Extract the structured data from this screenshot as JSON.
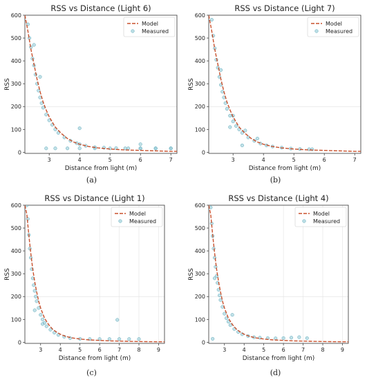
{
  "chart_data": [
    {
      "type": "scatter",
      "caption": "(a)",
      "title": "RSS vs Distance (Light 6)",
      "xlabel": "Distance from light (m)",
      "ylabel": "RSS",
      "xlim": [
        2.2,
        7.2
      ],
      "ylim": [
        -5,
        600
      ],
      "xticks": [
        3,
        4,
        5,
        6,
        7
      ],
      "yticks": [
        0,
        100,
        200,
        300,
        400,
        500,
        600
      ],
      "grid": true,
      "legend_position": "top-right",
      "series": [
        {
          "name": "Model",
          "kind": "line",
          "color": "#c8502c",
          "x": [
            2.2,
            2.3,
            2.4,
            2.5,
            2.6,
            2.7,
            2.8,
            2.9,
            3.0,
            3.2,
            3.4,
            3.6,
            3.8,
            4.0,
            4.3,
            4.6,
            5.0,
            5.5,
            6.0,
            6.5,
            7.0,
            7.2
          ],
          "y": [
            600,
            530,
            450,
            385,
            320,
            265,
            220,
            185,
            155,
            110,
            82,
            60,
            45,
            35,
            25,
            19,
            14,
            10,
            8,
            6,
            4,
            4
          ]
        },
        {
          "name": "Measured",
          "kind": "scatter",
          "color": "#8fc9d6",
          "x": [
            2.3,
            2.35,
            2.4,
            2.45,
            2.5,
            2.55,
            2.6,
            2.65,
            2.7,
            2.75,
            2.8,
            2.9,
            3.0,
            3.1,
            3.2,
            3.3,
            3.5,
            3.7,
            3.9,
            4.0,
            4.2,
            4.5,
            4.8,
            5.2,
            5.6,
            6.0,
            6.5,
            7.0,
            2.9,
            3.2,
            3.6,
            4.0,
            4.5,
            5.0,
            5.5,
            6.0,
            6.5,
            7.0,
            2.5,
            2.7,
            4.0,
            6.0
          ],
          "y": [
            560,
            500,
            460,
            410,
            380,
            340,
            300,
            270,
            240,
            215,
            195,
            165,
            140,
            120,
            100,
            85,
            65,
            50,
            40,
            35,
            28,
            22,
            20,
            18,
            17,
            17,
            17,
            17,
            17,
            17,
            17,
            17,
            17,
            17,
            17,
            17,
            17,
            17,
            470,
            330,
            105,
            35
          ]
        }
      ]
    },
    {
      "type": "scatter",
      "caption": "(b)",
      "title": "RSS vs Distance (Light 7)",
      "xlabel": "Distance from light (m)",
      "ylabel": "RSS",
      "xlim": [
        2.2,
        7.2
      ],
      "ylim": [
        -5,
        600
      ],
      "xticks": [
        3,
        4,
        5,
        6,
        7
      ],
      "yticks": [
        0,
        100,
        200,
        300,
        400,
        500,
        600
      ],
      "grid": true,
      "legend_position": "top-right",
      "series": [
        {
          "name": "Model",
          "kind": "line",
          "color": "#c8502c",
          "x": [
            2.2,
            2.3,
            2.4,
            2.5,
            2.6,
            2.7,
            2.8,
            2.9,
            3.0,
            3.2,
            3.4,
            3.6,
            3.8,
            4.0,
            4.3,
            4.6,
            5.0,
            5.5,
            6.0,
            6.5,
            7.0,
            7.2
          ],
          "y": [
            600,
            530,
            450,
            385,
            320,
            265,
            220,
            185,
            155,
            110,
            82,
            60,
            45,
            35,
            25,
            19,
            14,
            10,
            8,
            6,
            4,
            4
          ]
        },
        {
          "name": "Measured",
          "kind": "scatter",
          "color": "#8fc9d6",
          "x": [
            2.3,
            2.35,
            2.4,
            2.45,
            2.5,
            2.55,
            2.6,
            2.65,
            2.7,
            2.75,
            2.8,
            2.9,
            3.0,
            3.1,
            3.2,
            3.3,
            3.5,
            3.7,
            3.9,
            4.1,
            4.3,
            4.6,
            4.9,
            5.2,
            5.5,
            5.6,
            2.6,
            2.9,
            3.3,
            3.0,
            3.4,
            3.8
          ],
          "y": [
            580,
            510,
            455,
            405,
            370,
            330,
            295,
            265,
            240,
            215,
            190,
            160,
            135,
            115,
            100,
            85,
            65,
            50,
            38,
            30,
            25,
            20,
            16,
            14,
            13,
            13,
            360,
            110,
            30,
            160,
            95,
            60
          ]
        }
      ]
    },
    {
      "type": "scatter",
      "caption": "(c)",
      "title": "RSS vs Distance (Light 1)",
      "xlabel": "Distance from light (m)",
      "ylabel": "RSS",
      "xlim": [
        2.2,
        9.3
      ],
      "ylim": [
        -5,
        600
      ],
      "xticks": [
        3,
        4,
        5,
        6,
        7,
        8,
        9
      ],
      "yticks": [
        0,
        100,
        200,
        300,
        400,
        500,
        600
      ],
      "grid": true,
      "legend_position": "top-right",
      "series": [
        {
          "name": "Model",
          "kind": "line",
          "color": "#c8502c",
          "x": [
            2.2,
            2.3,
            2.4,
            2.5,
            2.6,
            2.7,
            2.8,
            2.9,
            3.0,
            3.2,
            3.4,
            3.6,
            3.8,
            4.0,
            4.3,
            4.6,
            5.0,
            5.5,
            6.0,
            6.5,
            7.0,
            8.0,
            9.0,
            9.3
          ],
          "y": [
            600,
            560,
            470,
            390,
            320,
            265,
            220,
            180,
            150,
            105,
            78,
            58,
            45,
            35,
            25,
            19,
            14,
            10,
            8,
            6,
            5,
            3,
            2,
            2
          ]
        },
        {
          "name": "Measured",
          "kind": "scatter",
          "color": "#8fc9d6",
          "x": [
            2.3,
            2.35,
            2.4,
            2.45,
            2.5,
            2.55,
            2.6,
            2.65,
            2.7,
            2.75,
            2.8,
            2.9,
            3.0,
            3.1,
            3.2,
            3.3,
            3.5,
            3.7,
            3.9,
            4.2,
            4.5,
            5.0,
            5.5,
            6.0,
            6.5,
            7.0,
            7.5,
            8.0,
            6.9,
            2.7,
            3.1
          ],
          "y": [
            600,
            540,
            470,
            410,
            370,
            320,
            280,
            250,
            225,
            200,
            180,
            150,
            120,
            100,
            85,
            70,
            55,
            42,
            32,
            24,
            18,
            15,
            14,
            14,
            14,
            14,
            14,
            14,
            98,
            140,
            80
          ]
        }
      ]
    },
    {
      "type": "scatter",
      "caption": "(d)",
      "title": "RSS vs Distance (Light 4)",
      "xlabel": "Distance from light (m)",
      "ylabel": "RSS",
      "xlim": [
        2.2,
        9.3
      ],
      "ylim": [
        -5,
        600
      ],
      "xticks": [
        3,
        4,
        5,
        6,
        7,
        8,
        9
      ],
      "yticks": [
        0,
        100,
        200,
        300,
        400,
        500,
        600
      ],
      "grid": true,
      "legend_position": "top-right",
      "series": [
        {
          "name": "Model",
          "kind": "line",
          "color": "#c8502c",
          "x": [
            2.2,
            2.3,
            2.4,
            2.5,
            2.6,
            2.7,
            2.8,
            2.9,
            3.0,
            3.2,
            3.4,
            3.6,
            3.8,
            4.0,
            4.3,
            4.6,
            5.0,
            5.5,
            6.0,
            6.5,
            7.0,
            8.0,
            9.0,
            9.3
          ],
          "y": [
            600,
            560,
            470,
            390,
            320,
            265,
            220,
            180,
            150,
            105,
            78,
            58,
            45,
            35,
            25,
            19,
            14,
            10,
            8,
            6,
            5,
            3,
            2,
            2
          ]
        },
        {
          "name": "Measured",
          "kind": "scatter",
          "color": "#8fc9d6",
          "x": [
            2.3,
            2.35,
            2.4,
            2.45,
            2.5,
            2.55,
            2.6,
            2.65,
            2.7,
            2.75,
            2.8,
            2.9,
            3.0,
            3.1,
            3.2,
            3.3,
            3.5,
            3.7,
            3.9,
            4.2,
            4.5,
            4.8,
            5.2,
            5.6,
            6.0,
            6.4,
            6.8,
            7.2,
            2.5,
            2.4,
            3.4
          ],
          "y": [
            590,
            520,
            465,
            410,
            370,
            330,
            290,
            260,
            230,
            205,
            185,
            155,
            125,
            105,
            90,
            75,
            58,
            45,
            35,
            27,
            22,
            20,
            18,
            17,
            18,
            20,
            22,
            18,
            280,
            15,
            120
          ]
        }
      ]
    }
  ]
}
